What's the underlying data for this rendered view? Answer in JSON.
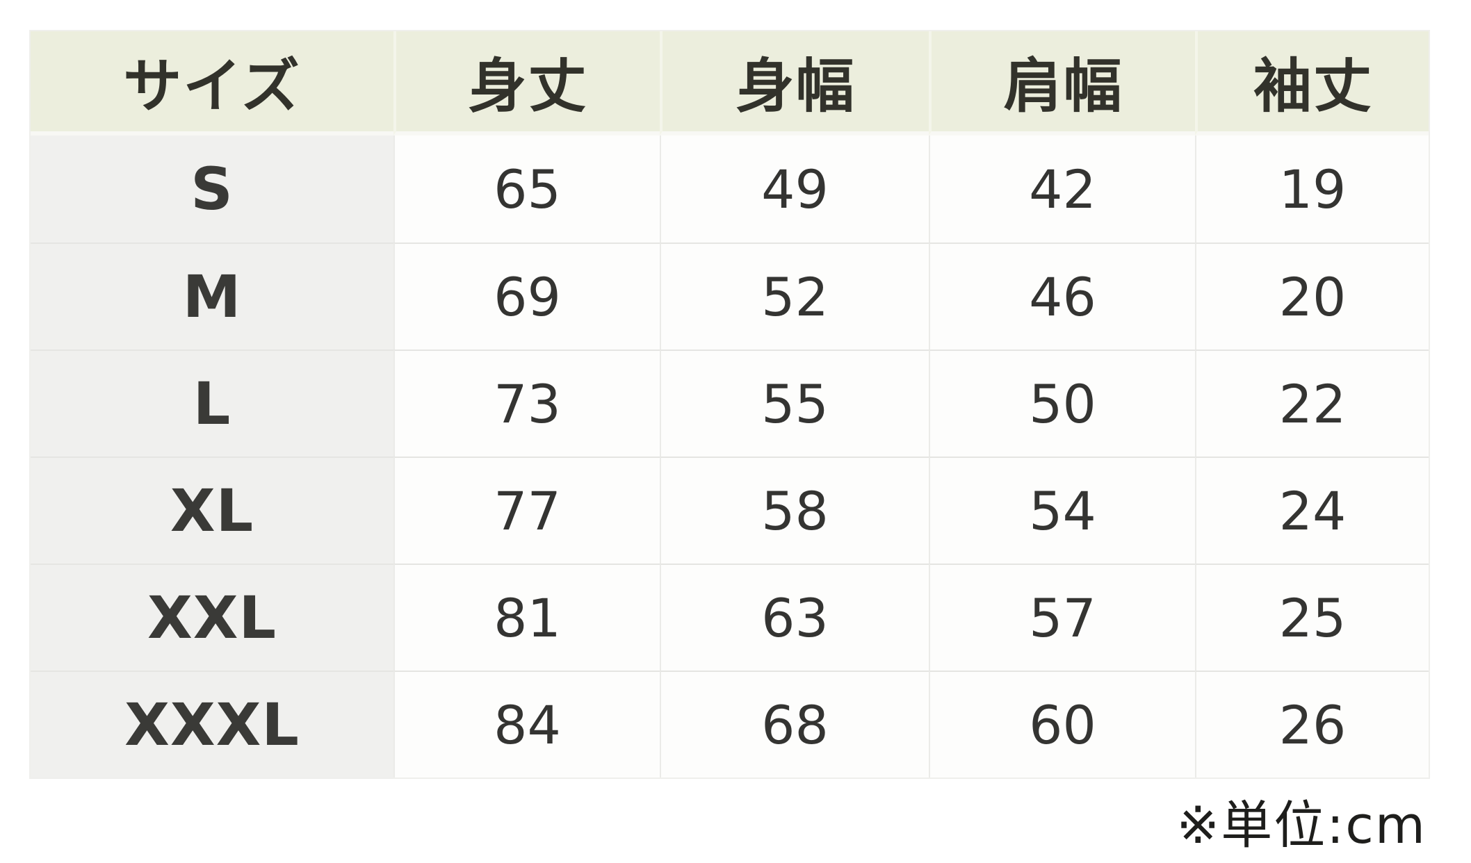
{
  "page": {
    "background": "#ffffff",
    "description_colors": {
      "header_bg": "#eceedd",
      "row_label_bg": "#f0f0ee",
      "cell_bg": "#fdfdfc",
      "grid_border": "#e5e5e2",
      "header_text": "#32322b",
      "cell_text": "#343432"
    }
  },
  "table": {
    "headers": [
      {
        "key": "size",
        "label": "サイズ"
      },
      {
        "key": "body_length",
        "label": "身丈"
      },
      {
        "key": "body_width",
        "label": "身幅"
      },
      {
        "key": "shoulder_width",
        "label": "肩幅"
      },
      {
        "key": "sleeve_length",
        "label": "袖丈"
      }
    ],
    "rows": [
      {
        "size": "S",
        "body_length": "65",
        "body_width": "49",
        "shoulder_width": "42",
        "sleeve_length": "19"
      },
      {
        "size": "M",
        "body_length": "69",
        "body_width": "52",
        "shoulder_width": "46",
        "sleeve_length": "20"
      },
      {
        "size": "L",
        "body_length": "73",
        "body_width": "55",
        "shoulder_width": "50",
        "sleeve_length": "22"
      },
      {
        "size": "XL",
        "body_length": "77",
        "body_width": "58",
        "shoulder_width": "54",
        "sleeve_length": "24"
      },
      {
        "size": "XXL",
        "body_length": "81",
        "body_width": "63",
        "shoulder_width": "57",
        "sleeve_length": "25"
      },
      {
        "size": "XXXL",
        "body_length": "84",
        "body_width": "68",
        "shoulder_width": "60",
        "sleeve_length": "26"
      }
    ]
  },
  "footer": {
    "unit_note": "※単位:cm"
  },
  "chart_data": {
    "type": "table",
    "title": "",
    "columns": [
      "サイズ",
      "身丈",
      "身幅",
      "肩幅",
      "袖丈"
    ],
    "rows": [
      [
        "S",
        65,
        49,
        42,
        19
      ],
      [
        "M",
        69,
        52,
        46,
        20
      ],
      [
        "L",
        73,
        55,
        50,
        22
      ],
      [
        "XL",
        77,
        58,
        54,
        24
      ],
      [
        "XXL",
        81,
        63,
        57,
        25
      ],
      [
        "XXXL",
        84,
        68,
        60,
        26
      ]
    ],
    "unit": "cm",
    "note": "※単位:cm"
  }
}
